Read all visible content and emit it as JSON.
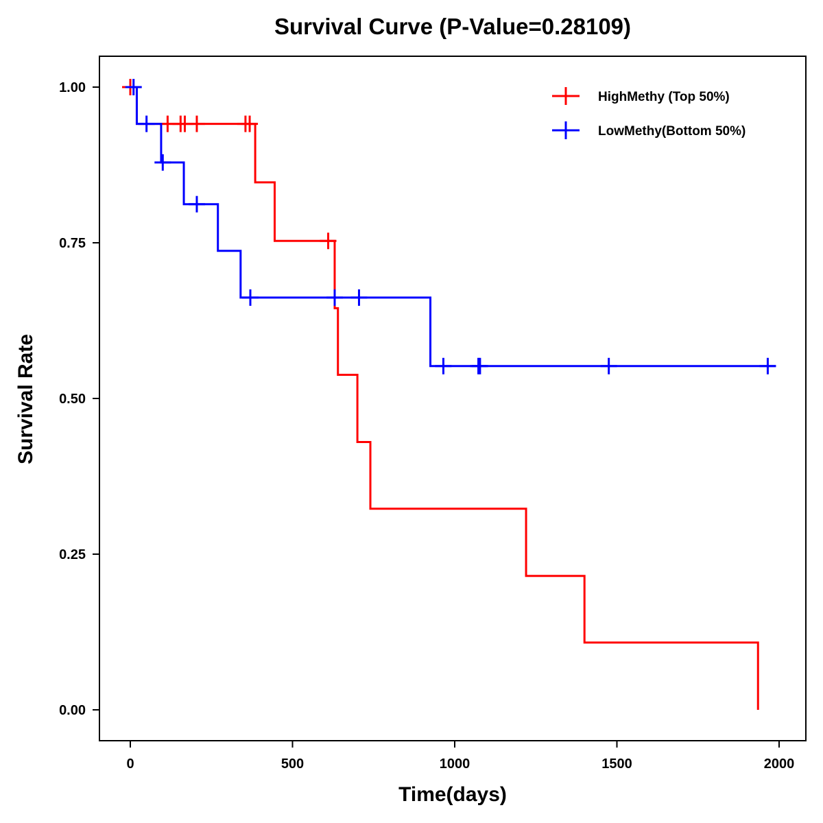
{
  "chart_data": {
    "type": "line",
    "subtype": "kaplan-meier-step",
    "title": "Survival Curve (P-Value=0.28109)",
    "xlabel": "Time(days)",
    "ylabel": "Survival Rate",
    "xlim": [
      -90,
      2090
    ],
    "ylim": [
      -0.05,
      1.05
    ],
    "xticks": [
      0,
      500,
      1000,
      1500,
      2000
    ],
    "xtick_labels": [
      "0",
      "500",
      "1000",
      "1500",
      "2000"
    ],
    "yticks": [
      0,
      0.25,
      0.5,
      0.75,
      1.0
    ],
    "ytick_labels": [
      "0.00",
      "0.25",
      "0.50",
      "0.75",
      "1.00"
    ],
    "grid": false,
    "legend_position": "top-right",
    "series": [
      {
        "name": "HighMethy (Top 50%)",
        "color": "#ff0000",
        "steps": [
          {
            "t": -25,
            "s": 1.0
          },
          {
            "t": 20,
            "s": 0.941
          },
          {
            "t": 385,
            "s": 0.847
          },
          {
            "t": 445,
            "s": 0.753
          },
          {
            "t": 630,
            "s": 0.645
          },
          {
            "t": 640,
            "s": 0.538
          },
          {
            "t": 700,
            "s": 0.43
          },
          {
            "t": 740,
            "s": 0.323
          },
          {
            "t": 1220,
            "s": 0.215
          },
          {
            "t": 1400,
            "s": 0.108
          },
          {
            "t": 1935,
            "s": 0.0
          }
        ],
        "end_t": 1935,
        "censored": [
          {
            "t": 0,
            "s": 1.0
          },
          {
            "t": 115,
            "s": 0.941
          },
          {
            "t": 155,
            "s": 0.941
          },
          {
            "t": 168,
            "s": 0.941
          },
          {
            "t": 205,
            "s": 0.941
          },
          {
            "t": 355,
            "s": 0.941
          },
          {
            "t": 368,
            "s": 0.941
          },
          {
            "t": 610,
            "s": 0.753
          }
        ]
      },
      {
        "name": "LowMethy(Bottom 50%)",
        "color": "#0000ff",
        "steps": [
          {
            "t": -15,
            "s": 1.0
          },
          {
            "t": 20,
            "s": 0.941
          },
          {
            "t": 95,
            "s": 0.879
          },
          {
            "t": 165,
            "s": 0.812
          },
          {
            "t": 270,
            "s": 0.737
          },
          {
            "t": 340,
            "s": 0.662
          },
          {
            "t": 925,
            "s": 0.552
          }
        ],
        "end_t": 1990,
        "censored": [
          {
            "t": 10,
            "s": 1.0
          },
          {
            "t": 50,
            "s": 0.941
          },
          {
            "t": 100,
            "s": 0.879
          },
          {
            "t": 205,
            "s": 0.812
          },
          {
            "t": 370,
            "s": 0.662
          },
          {
            "t": 630,
            "s": 0.662
          },
          {
            "t": 705,
            "s": 0.662
          },
          {
            "t": 965,
            "s": 0.552
          },
          {
            "t": 1073,
            "s": 0.552
          },
          {
            "t": 1078,
            "s": 0.552
          },
          {
            "t": 1475,
            "s": 0.552
          },
          {
            "t": 1965,
            "s": 0.552
          }
        ]
      }
    ]
  }
}
